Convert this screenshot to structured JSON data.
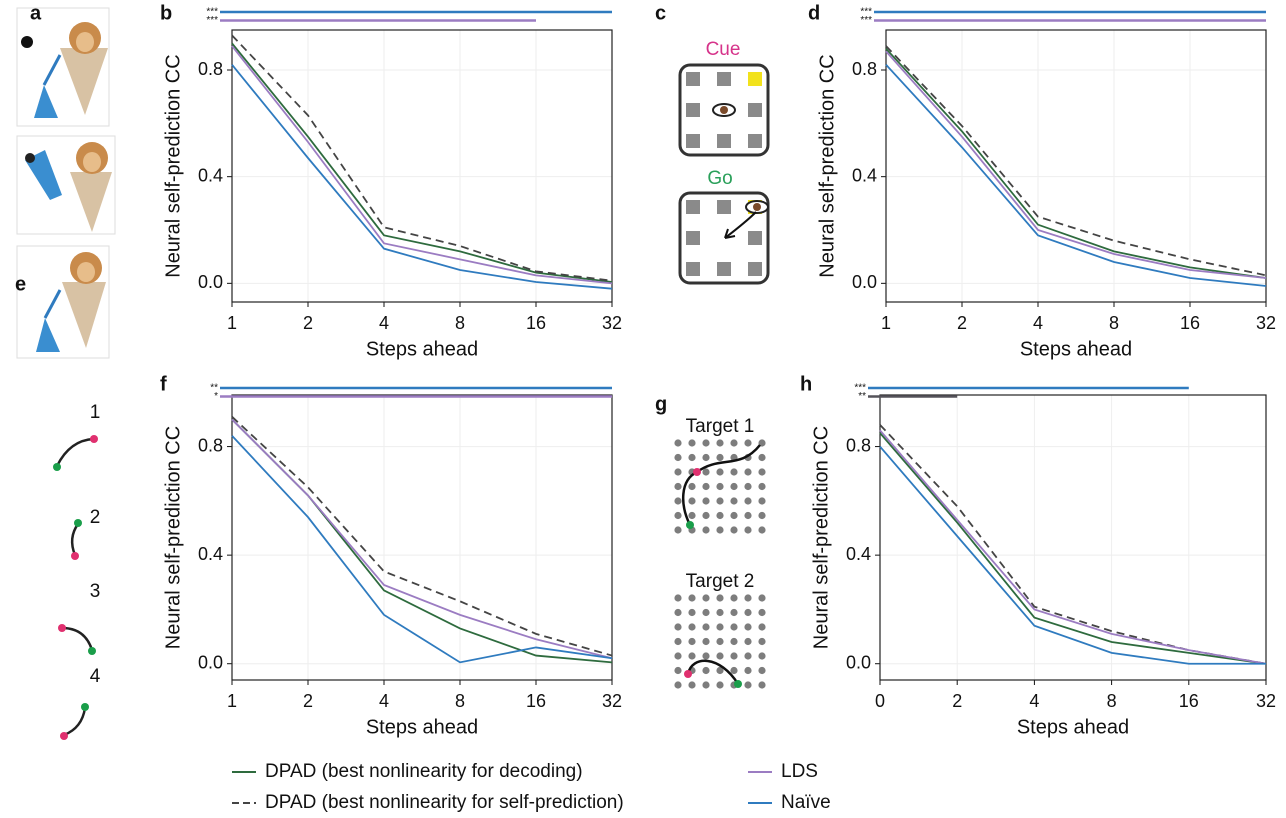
{
  "panel_labels": [
    "a",
    "b",
    "c",
    "d",
    "e",
    "f",
    "g",
    "h"
  ],
  "diagrams": {
    "cue": "Cue",
    "go": "Go",
    "target1": "Target 1",
    "target2": "Target 2",
    "directions": [
      "1",
      "2",
      "3",
      "4"
    ]
  },
  "chart_data": [
    {
      "type": "line",
      "xlabel": "Steps ahead",
      "ylabel": "Neural self-prediction CC",
      "categories": [
        "1",
        "2",
        "4",
        "8",
        "16",
        "32"
      ],
      "ylim": [
        -0.07,
        0.95
      ],
      "yticks": [
        {
          "value": 0,
          "label": "0.0"
        },
        0.4,
        0.8
      ],
      "grid": true,
      "series": [
        {
          "name": "DPAD (best nonlinearity for decoding)",
          "color": "#2e6b3e",
          "dash": false,
          "values": [
            0.9,
            0.55,
            0.18,
            0.12,
            0.04,
            0.005
          ]
        },
        {
          "name": "DPAD (best nonlinearity for self-prediction)",
          "color": "#444444",
          "dash": true,
          "values": [
            0.93,
            0.63,
            0.21,
            0.14,
            0.045,
            0.01
          ]
        },
        {
          "name": "LDS",
          "color": "#9b7cc2",
          "dash": false,
          "values": [
            0.89,
            0.53,
            0.15,
            0.09,
            0.03,
            0.0
          ]
        },
        {
          "name": "Naïve",
          "color": "#2f7bbf",
          "dash": false,
          "values": [
            0.82,
            0.47,
            0.13,
            0.05,
            0.005,
            -0.02
          ]
        }
      ],
      "significance": [
        {
          "label": "***",
          "color": "#2f7bbf",
          "to": "32"
        },
        {
          "label": "***",
          "color": "#9b7cc2",
          "to": "16"
        }
      ]
    },
    {
      "type": "line",
      "xlabel": "Steps ahead",
      "ylabel": "Neural self-prediction CC",
      "categories": [
        "1",
        "2",
        "4",
        "8",
        "16",
        "32"
      ],
      "ylim": [
        -0.07,
        0.95
      ],
      "yticks": [
        {
          "value": 0,
          "label": "0.0"
        },
        0.4,
        0.8
      ],
      "grid": true,
      "series": [
        {
          "color": "#2e6b3e",
          "dash": false,
          "values": [
            0.88,
            0.57,
            0.22,
            0.12,
            0.06,
            0.02
          ]
        },
        {
          "color": "#444444",
          "dash": true,
          "values": [
            0.89,
            0.59,
            0.25,
            0.16,
            0.09,
            0.03
          ]
        },
        {
          "color": "#9b7cc2",
          "dash": false,
          "values": [
            0.87,
            0.55,
            0.2,
            0.11,
            0.05,
            0.02
          ]
        },
        {
          "color": "#2f7bbf",
          "dash": false,
          "values": [
            0.82,
            0.51,
            0.18,
            0.08,
            0.02,
            -0.01
          ]
        }
      ],
      "significance": [
        {
          "label": "***",
          "color": "#2f7bbf",
          "to": "32"
        },
        {
          "label": "***",
          "color": "#9b7cc2",
          "to": "32"
        }
      ]
    },
    {
      "type": "line",
      "xlabel": "Steps ahead",
      "ylabel": "Neural self-prediction CC",
      "categories": [
        "1",
        "2",
        "4",
        "8",
        "16",
        "32"
      ],
      "ylim": [
        -0.06,
        0.99
      ],
      "yticks": [
        {
          "value": 0,
          "label": "0.0"
        },
        0.4,
        0.8
      ],
      "grid": true,
      "series": [
        {
          "color": "#2e6b3e",
          "dash": false,
          "values": [
            0.9,
            0.62,
            0.27,
            0.13,
            0.03,
            0.005
          ]
        },
        {
          "color": "#444444",
          "dash": true,
          "values": [
            0.91,
            0.65,
            0.34,
            0.23,
            0.11,
            0.03
          ]
        },
        {
          "color": "#9b7cc2",
          "dash": false,
          "values": [
            0.9,
            0.62,
            0.29,
            0.18,
            0.09,
            0.02
          ]
        },
        {
          "color": "#2f7bbf",
          "dash": false,
          "values": [
            0.84,
            0.54,
            0.18,
            0.005,
            0.06,
            0.02
          ]
        }
      ],
      "significance": [
        {
          "label": "**",
          "color": "#2f7bbf",
          "to": "32"
        },
        {
          "label": "*",
          "color": "#9b7cc2",
          "to": "32"
        }
      ]
    },
    {
      "type": "line",
      "xlabel": "Steps ahead",
      "ylabel": "Neural self-prediction CC",
      "categories": [
        "0",
        "2",
        "4",
        "8",
        "16",
        "32"
      ],
      "ylim": [
        -0.06,
        0.99
      ],
      "yticks": [
        {
          "value": 0,
          "label": "0.0"
        },
        0.4,
        0.8
      ],
      "grid": true,
      "series": [
        {
          "color": "#2e6b3e",
          "dash": false,
          "values": [
            0.85,
            0.52,
            0.17,
            0.08,
            0.04,
            0.0
          ]
        },
        {
          "color": "#444444",
          "dash": true,
          "values": [
            0.88,
            0.58,
            0.21,
            0.12,
            0.05,
            0.0
          ]
        },
        {
          "color": "#9b7cc2",
          "dash": false,
          "values": [
            0.86,
            0.53,
            0.2,
            0.11,
            0.05,
            0.0
          ]
        },
        {
          "color": "#2f7bbf",
          "dash": false,
          "values": [
            0.8,
            0.47,
            0.14,
            0.04,
            0.0,
            0.0
          ]
        }
      ],
      "significance": [
        {
          "label": "***",
          "color": "#2f7bbf",
          "to": "16"
        },
        {
          "label": "**",
          "color": "#55535a",
          "to": "2"
        }
      ]
    }
  ]
}
